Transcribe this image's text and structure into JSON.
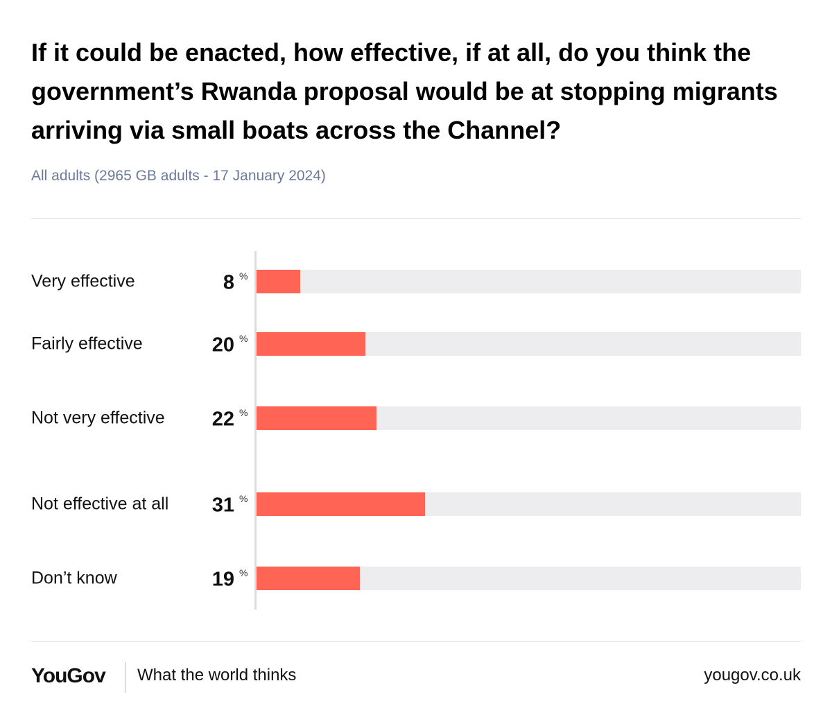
{
  "chart_data": {
    "type": "bar",
    "orientation": "horizontal",
    "title": "If it could be enacted, how effective, if at all, do you think the government’s Rwanda proposal would be at stopping migrants arriving via small boats across the Channel?",
    "subtitle": "All adults (2965 GB adults - 17 January 2024)",
    "categories": [
      "Very effective",
      "Fairly effective",
      "Not very effective",
      "Not effective at all",
      "Don’t know"
    ],
    "values": [
      8,
      20,
      22,
      31,
      19
    ],
    "value_suffix": "%",
    "color": "#ff6455",
    "xlim": [
      0,
      100
    ]
  },
  "footer": {
    "logo": "YouGov",
    "tagline": "What the world thinks",
    "site": "yougov.co.uk"
  }
}
